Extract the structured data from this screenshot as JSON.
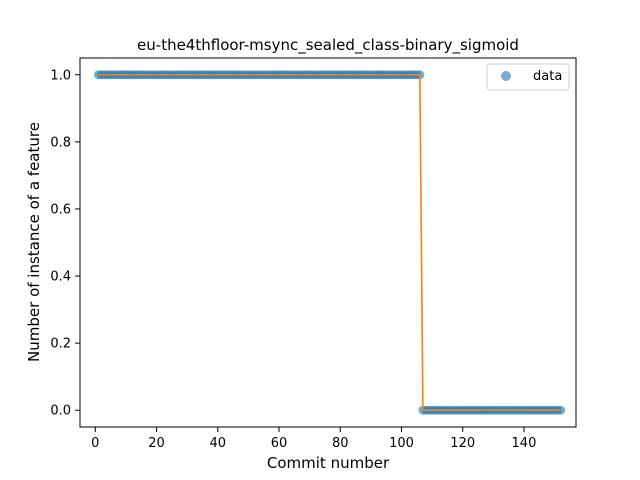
{
  "chart_data": {
    "type": "scatter",
    "title": "eu-the4thfloor-msync_sealed_class-binary_sigmoid",
    "xlabel": "Commit number",
    "ylabel": "Number of instance of a feature",
    "xlim": [
      -5,
      157
    ],
    "ylim": [
      -0.05,
      1.05
    ],
    "xticks": [
      0,
      20,
      40,
      60,
      80,
      100,
      120,
      140
    ],
    "yticks": [
      0.0,
      0.2,
      0.4,
      0.6,
      0.8,
      1.0
    ],
    "xtick_labels": [
      "0",
      "20",
      "40",
      "60",
      "80",
      "100",
      "120",
      "140"
    ],
    "ytick_labels": [
      "0.0",
      "0.2",
      "0.4",
      "0.6",
      "0.8",
      "1.0"
    ],
    "grid": false,
    "legend_position": "top-right",
    "series": [
      {
        "name": "data",
        "kind": "points",
        "color": "#1f77b4",
        "x_start": 1,
        "x_end": 152,
        "step_after": 106,
        "value_before": 1,
        "value_after": 0
      },
      {
        "kind": "line",
        "color": "#ff7f0e",
        "x": [
          1,
          106,
          107,
          152
        ],
        "y": [
          1,
          1,
          0,
          0
        ]
      }
    ]
  }
}
